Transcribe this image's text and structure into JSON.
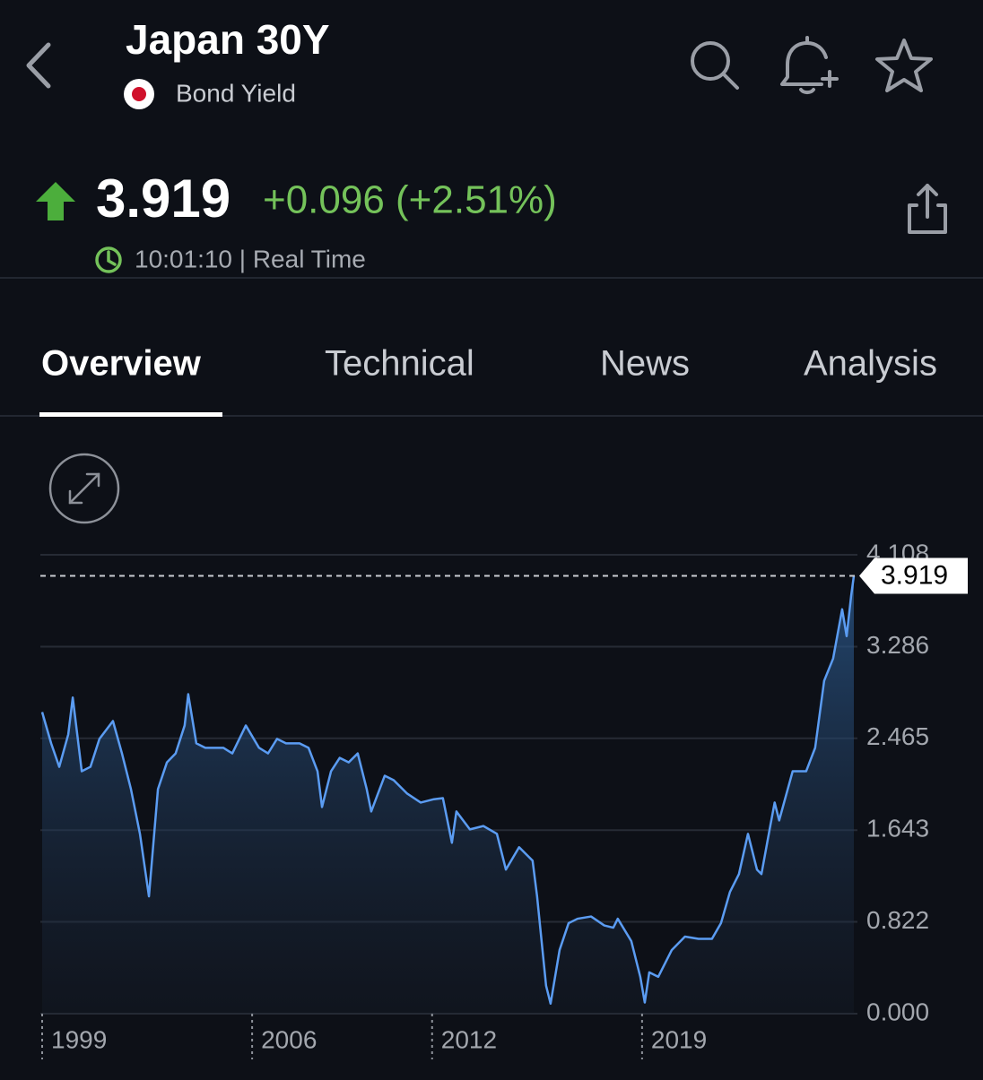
{
  "header": {
    "title": "Japan 30Y",
    "subtitle": "Bond Yield"
  },
  "quote": {
    "price": "3.919",
    "change": "+0.096 (+2.51%)",
    "time": "10:01:10 | Real Time"
  },
  "tabs": [
    "Overview",
    "Technical",
    "News",
    "Analysis"
  ],
  "chart_data": {
    "type": "line",
    "x": [
      1999.0,
      1999.3,
      1999.57,
      1999.87,
      2000.02,
      2000.32,
      2000.61,
      2000.91,
      2001.36,
      2001.66,
      2001.96,
      2002.26,
      2002.56,
      2002.86,
      2003.16,
      2003.45,
      2003.75,
      2003.87,
      2004.14,
      2004.44,
      2004.74,
      2005.04,
      2005.34,
      2005.79,
      2006.23,
      2006.53,
      2006.83,
      2007.13,
      2007.58,
      2007.88,
      2008.18,
      2008.33,
      2008.63,
      2008.92,
      2009.22,
      2009.52,
      2009.82,
      2009.97,
      2010.42,
      2010.72,
      2011.17,
      2011.62,
      2012.06,
      2012.36,
      2012.66,
      2012.81,
      2013.26,
      2013.71,
      2014.16,
      2014.46,
      2014.9,
      2015.35,
      2015.5,
      2015.8,
      2015.95,
      2016.25,
      2016.55,
      2016.85,
      2017.3,
      2017.74,
      2018.04,
      2018.19,
      2018.64,
      2018.94,
      2019.09,
      2019.24,
      2019.54,
      2019.99,
      2020.43,
      2020.88,
      2021.33,
      2021.63,
      2021.93,
      2022.23,
      2022.53,
      2022.83,
      2022.98,
      2023.28,
      2023.42,
      2023.57,
      2024.02,
      2024.47,
      2024.77,
      2025.07,
      2025.37,
      2025.67,
      2025.82,
      2025.97,
      2026.06
    ],
    "values": [
      2.7,
      2.42,
      2.21,
      2.5,
      2.83,
      2.17,
      2.21,
      2.46,
      2.62,
      2.33,
      2.01,
      1.61,
      1.05,
      2.01,
      2.25,
      2.33,
      2.58,
      2.86,
      2.42,
      2.38,
      2.38,
      2.38,
      2.33,
      2.58,
      2.38,
      2.33,
      2.46,
      2.42,
      2.42,
      2.38,
      2.17,
      1.85,
      2.17,
      2.29,
      2.25,
      2.33,
      2.01,
      1.81,
      2.13,
      2.09,
      1.97,
      1.89,
      1.92,
      1.93,
      1.53,
      1.81,
      1.65,
      1.68,
      1.61,
      1.29,
      1.49,
      1.37,
      1.05,
      0.25,
      0.09,
      0.57,
      0.81,
      0.85,
      0.87,
      0.79,
      0.77,
      0.85,
      0.65,
      0.33,
      0.1,
      0.37,
      0.33,
      0.57,
      0.69,
      0.67,
      0.67,
      0.81,
      1.09,
      1.25,
      1.61,
      1.29,
      1.25,
      1.69,
      1.89,
      1.73,
      2.17,
      2.17,
      2.38,
      2.98,
      3.18,
      3.62,
      3.38,
      3.74,
      3.919
    ],
    "color": "#5b9cf2",
    "xlim": [
      1999,
      2026.06
    ],
    "xticks": [
      1999,
      2006,
      2012,
      2019
    ],
    "ylim": [
      0,
      4.108
    ],
    "yticks": [
      {
        "value": 0,
        "label": "0.000"
      },
      0.822,
      1.643,
      2.465,
      3.286,
      4.108
    ],
    "grid": true,
    "last_value": 3.919
  }
}
